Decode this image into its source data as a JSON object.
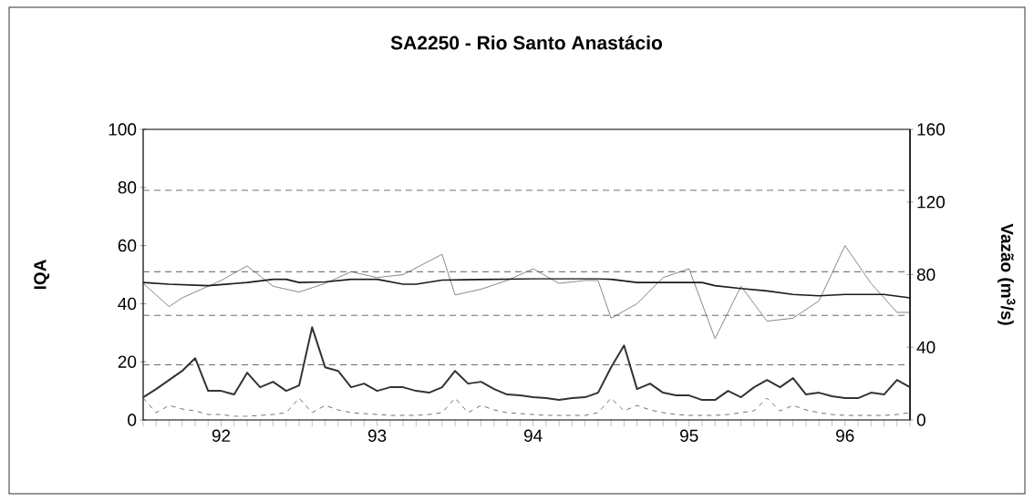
{
  "chart_data": {
    "type": "line",
    "title": "SA2250 - Rio Santo Anastácio",
    "ylabel": "IQA",
    "y2label": "Vazão (m$^{3}$/s)",
    "x": [
      "1992-01",
      "1992-02",
      "1992-03",
      "1992-04",
      "1992-05",
      "1992-06",
      "1992-07",
      "1992-08",
      "1992-09",
      "1992-10",
      "1992-11",
      "1992-12",
      "1993-01",
      "1993-02",
      "1993-03",
      "1993-04",
      "1993-05",
      "1993-06",
      "1993-07",
      "1993-08",
      "1993-09",
      "1993-10",
      "1993-11",
      "1993-12",
      "1994-01",
      "1994-02",
      "1994-03",
      "1994-04",
      "1994-05",
      "1994-06",
      "1994-07",
      "1994-08",
      "1994-09",
      "1994-10",
      "1994-11",
      "1994-12",
      "1995-01",
      "1995-02",
      "1995-03",
      "1995-04",
      "1995-05",
      "1995-06",
      "1995-07",
      "1995-08",
      "1995-09",
      "1995-10",
      "1995-11",
      "1995-12",
      "1996-01",
      "1996-02",
      "1996-03",
      "1996-04",
      "1996-05",
      "1996-06",
      "1996-07",
      "1996-08",
      "1996-09",
      "1996-10",
      "1996-11",
      "1996-12"
    ],
    "series": [
      {
        "color": "#555555",
        "x": [
          "1992-01",
          "1992-03",
          "1992-04",
          "1992-07",
          "1992-09",
          "1992-11",
          "1993-01",
          "1993-03",
          "1993-05",
          "1993-07",
          "1993-09",
          "1993-12",
          "1994-01",
          "1994-03",
          "1994-05",
          "1994-07",
          "1994-09",
          "1994-11",
          "1994-12",
          "1995-01",
          "1995-03",
          "1995-05",
          "1995-07",
          "1995-09",
          "1995-11",
          "1996-01",
          "1996-03",
          "1996-05",
          "1996-07",
          "1996-09",
          "1996-11",
          "1996-12"
        ],
        "values": [
          47,
          39,
          42,
          48,
          53,
          46,
          44,
          47,
          51,
          49,
          50,
          57,
          43,
          45,
          48,
          52,
          47,
          48,
          48,
          35,
          40,
          49,
          52,
          28,
          46,
          34,
          35,
          41,
          60,
          47,
          37,
          37
        ]
      },
      {
        "color": "#1a1a1a",
        "x": [
          "1992-01",
          "1992-03",
          "1992-06",
          "1992-09",
          "1992-11",
          "1992-12",
          "1993-01",
          "1993-03",
          "1993-05",
          "1993-07",
          "1993-09",
          "1993-10",
          "1993-12",
          "1994-04",
          "1994-07",
          "1994-12",
          "1995-01",
          "1995-03",
          "1995-08",
          "1995-09",
          "1995-11",
          "1996-01",
          "1996-03",
          "1996-05",
          "1996-07",
          "1996-10",
          "1996-12"
        ],
        "values": [
          47.3,
          46.7,
          46.2,
          47.3,
          48.4,
          48.4,
          47.3,
          47.5,
          48.4,
          48.4,
          46.7,
          46.7,
          48.1,
          48.4,
          48.6,
          48.6,
          48.4,
          47.3,
          47.3,
          46.2,
          45.2,
          44.4,
          43.2,
          42.7,
          43.2,
          43.2,
          42.0
        ]
      },
      {
        "color": "#333333",
        "axis": "y2",
        "values": [
          12.5,
          17,
          22,
          27,
          34,
          16,
          16,
          14,
          26,
          18,
          21,
          16,
          19,
          51,
          29,
          27,
          18,
          20,
          16,
          18,
          18,
          16,
          15,
          18,
          27,
          20,
          21,
          17,
          14,
          13.5,
          12.5,
          12,
          11,
          12,
          12.5,
          15,
          29,
          41,
          17,
          20,
          15,
          13.5,
          13.5,
          11,
          11,
          16,
          12.5,
          18,
          22,
          18,
          23,
          14,
          15,
          13,
          12,
          12,
          15,
          14,
          22,
          18
        ]
      },
      {
        "color": "#333333",
        "axis": "y2",
        "line_style": "dashed",
        "values": [
          12,
          4,
          8,
          6,
          5,
          3,
          3,
          2,
          2,
          2.5,
          3,
          4,
          12,
          4,
          8,
          5.5,
          4,
          3.5,
          3,
          2.5,
          2.5,
          2.5,
          3,
          4,
          12,
          4,
          8,
          5.5,
          4,
          3.5,
          3,
          2.5,
          2.5,
          2.5,
          2.5,
          4,
          12,
          5,
          8,
          5.5,
          4,
          3,
          2.5,
          2.5,
          2.5,
          3,
          4,
          5,
          12,
          5,
          8,
          5.5,
          4,
          3,
          2.5,
          2.5,
          2.5,
          2.5,
          3,
          4
        ]
      }
    ],
    "xlim": [
      "1992-01",
      "1996-12"
    ],
    "xticks": [
      {
        "value": "1992-01",
        "label": null
      },
      {
        "value": "1992-02",
        "label": null
      },
      {
        "value": "1992-03",
        "label": null
      },
      {
        "value": "1992-04",
        "label": null
      },
      {
        "value": "1992-05",
        "label": null
      },
      {
        "value": "1992-06",
        "label": null
      },
      {
        "value": "1992-07",
        "label": "92"
      },
      {
        "value": "1992-08",
        "label": null
      },
      {
        "value": "1992-09",
        "label": null
      },
      {
        "value": "1992-10",
        "label": null
      },
      {
        "value": "1992-11",
        "label": null
      },
      {
        "value": "1992-12",
        "label": null
      },
      {
        "value": "1993-01",
        "label": null
      },
      {
        "value": "1993-02",
        "label": null
      },
      {
        "value": "1993-03",
        "label": null
      },
      {
        "value": "1993-04",
        "label": null
      },
      {
        "value": "1993-05",
        "label": null
      },
      {
        "value": "1993-06",
        "label": null
      },
      {
        "value": "1993-07",
        "label": "93"
      },
      {
        "value": "1993-08",
        "label": null
      },
      {
        "value": "1993-09",
        "label": null
      },
      {
        "value": "1993-10",
        "label": null
      },
      {
        "value": "1993-11",
        "label": null
      },
      {
        "value": "1993-12",
        "label": null
      },
      {
        "value": "1994-01",
        "label": null
      },
      {
        "value": "1994-02",
        "label": null
      },
      {
        "value": "1994-03",
        "label": null
      },
      {
        "value": "1994-04",
        "label": null
      },
      {
        "value": "1994-05",
        "label": null
      },
      {
        "value": "1994-06",
        "label": null
      },
      {
        "value": "1994-07",
        "label": "94"
      },
      {
        "value": "1994-08",
        "label": null
      },
      {
        "value": "1994-09",
        "label": null
      },
      {
        "value": "1994-10",
        "label": null
      },
      {
        "value": "1994-11",
        "label": null
      },
      {
        "value": "1994-12",
        "label": null
      },
      {
        "value": "1995-01",
        "label": null
      },
      {
        "value": "1995-02",
        "label": null
      },
      {
        "value": "1995-03",
        "label": null
      },
      {
        "value": "1995-04",
        "label": null
      },
      {
        "value": "1995-05",
        "label": null
      },
      {
        "value": "1995-06",
        "label": null
      },
      {
        "value": "1995-07",
        "label": "95"
      },
      {
        "value": "1995-08",
        "label": null
      },
      {
        "value": "1995-09",
        "label": null
      },
      {
        "value": "1995-10",
        "label": null
      },
      {
        "value": "1995-11",
        "label": null
      },
      {
        "value": "1995-12",
        "label": null
      },
      {
        "value": "1996-01",
        "label": null
      },
      {
        "value": "1996-02",
        "label": null
      },
      {
        "value": "1996-03",
        "label": null
      },
      {
        "value": "1996-04",
        "label": null
      },
      {
        "value": "1996-05",
        "label": null
      },
      {
        "value": "1996-06",
        "label": null
      },
      {
        "value": "1996-07",
        "label": "96"
      },
      {
        "value": "1996-08",
        "label": null
      },
      {
        "value": "1996-09",
        "label": null
      },
      {
        "value": "1996-10",
        "label": null
      },
      {
        "value": "1996-11",
        "label": null
      },
      {
        "value": "1996-12",
        "label": null
      }
    ],
    "ylim": [
      0,
      100
    ],
    "yticks": [
      0,
      20,
      40,
      60,
      80,
      100
    ],
    "y2lim": [
      0,
      160
    ],
    "y2ticks": [
      0,
      40,
      80,
      120,
      160
    ],
    "ref_lines": [
      {
        "axis": "y",
        "value": 79,
        "color": "#333333",
        "line_style": "dashed"
      },
      {
        "axis": "y",
        "value": 51,
        "color": "#333333",
        "line_style": "dashed"
      },
      {
        "axis": "y",
        "value": 36,
        "color": "#333333",
        "line_style": "dashed"
      },
      {
        "axis": "y",
        "value": 19,
        "color": "#333333",
        "line_style": "dashed"
      }
    ]
  }
}
